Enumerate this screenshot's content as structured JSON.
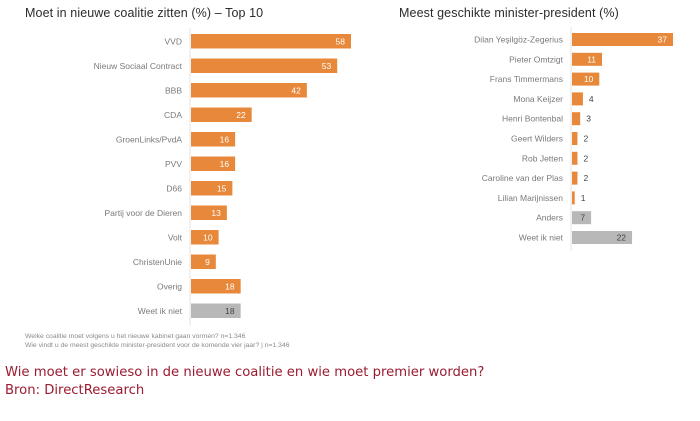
{
  "chart_data": [
    {
      "type": "bar",
      "orientation": "horizontal",
      "title": "Moet in nieuwe coalitie zitten (%) – Top 10",
      "categories": [
        "VVD",
        "Nieuw Sociaal Contract",
        "BBB",
        "CDA",
        "GroenLinks/PvdA",
        "PVV",
        "D66",
        "Partij voor de Dieren",
        "Volt",
        "ChristenUnie",
        "Overig",
        "Weet ik niet"
      ],
      "values": [
        58,
        53,
        42,
        22,
        16,
        16,
        15,
        13,
        10,
        9,
        18,
        18
      ],
      "colors": [
        "#E8883A",
        "#E8883A",
        "#E8883A",
        "#E8883A",
        "#E8883A",
        "#E8883A",
        "#E8883A",
        "#E8883A",
        "#E8883A",
        "#E8883A",
        "#E8883A",
        "#B8B8B8"
      ],
      "xlabel": "",
      "ylabel": "",
      "xlim": [
        0,
        58
      ],
      "grid": false,
      "legend": "none"
    },
    {
      "type": "bar",
      "orientation": "horizontal",
      "title": "Meest geschikte minister-president (%)",
      "categories": [
        "Dilan Yeşilgöz-Zegerius",
        "Pieter Omtzigt",
        "Frans Timmermans",
        "Mona Keijzer",
        "Henri Bontenbal",
        "Geert Wilders",
        "Rob Jetten",
        "Caroline van der Plas",
        "Lilian Marijnissen",
        "Anders",
        "Weet ik niet"
      ],
      "values": [
        37,
        11,
        10,
        4,
        3,
        2,
        2,
        2,
        1,
        7,
        22
      ],
      "colors": [
        "#E8883A",
        "#E8883A",
        "#E8883A",
        "#E8883A",
        "#E8883A",
        "#E8883A",
        "#E8883A",
        "#E8883A",
        "#E8883A",
        "#B8B8B8",
        "#B8B8B8"
      ],
      "xlabel": "",
      "ylabel": "",
      "xlim": [
        0,
        37
      ],
      "grid": false,
      "legend": "none"
    }
  ],
  "notes": {
    "line1": "Welke coalitie moet volgens u het nieuwe kabinet gaan vormen?  n=1.346",
    "line2": "Wie vindt u de meest geschikte minister-president voor de komende vier jaar? | n=1.346"
  },
  "caption": {
    "line1": "Wie moet er sowieso in de nieuwe coalitie en wie moet premier worden?",
    "line2": "Bron: DirectResearch"
  },
  "colors": {
    "orange": "#E8883A",
    "grey": "#B8B8B8",
    "caption": "#9b1b30"
  }
}
